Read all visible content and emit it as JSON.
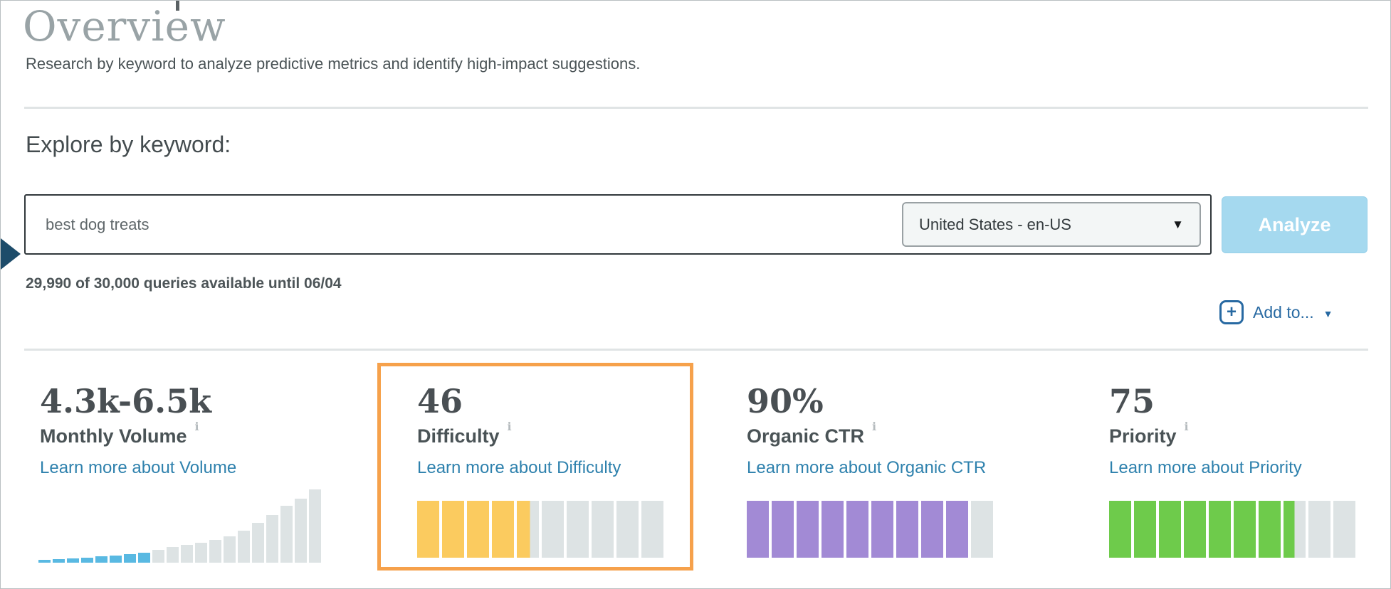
{
  "page": {
    "title": "Overview",
    "subtitle": "Research by keyword to analyze predictive metrics and identify high-impact suggestions."
  },
  "explore": {
    "heading": "Explore by keyword:",
    "keyword_input": {
      "value": "best dog treats"
    },
    "locale_select": {
      "value": "United States - en-US",
      "caret_icon": "▼"
    },
    "analyze_button": "Analyze",
    "quota_text": "29,990 of 30,000 queries available until 06/04",
    "add_to": {
      "label": "Add to...",
      "plus_icon": "+",
      "caret_icon": "▼"
    }
  },
  "metrics": {
    "cards": [
      {
        "id": "volume",
        "value": "4.3k-6.5k",
        "label": "Monthly Volume",
        "info_icon": "i",
        "link": "Learn more about Volume",
        "histogram": {
          "heights": [
            4,
            5,
            6,
            7,
            9,
            10,
            12,
            14,
            18,
            22,
            25,
            28,
            32,
            37,
            45,
            56,
            67,
            80,
            90,
            103
          ],
          "highlight_count": 8,
          "bar_color": "#59b9e2",
          "track_color": "#dde3e4"
        }
      },
      {
        "id": "difficulty",
        "value": "46",
        "label": "Difficulty",
        "info_icon": "i",
        "link": "Learn more about Difficulty",
        "highlighted": true,
        "gauge": {
          "score": 46,
          "segments": 10,
          "color": "#fbcb5f",
          "track_color": "#dde3e4"
        }
      },
      {
        "id": "organic-ctr",
        "value": "90%",
        "label": "Organic CTR",
        "info_icon": "i",
        "link": "Learn more about Organic CTR",
        "gauge": {
          "score": 90,
          "segments": 10,
          "color": "#a28ad5",
          "track_color": "#dde3e4"
        }
      },
      {
        "id": "priority",
        "value": "75",
        "label": "Priority",
        "info_icon": "i",
        "link": "Learn more about Priority",
        "gauge": {
          "score": 75,
          "segments": 10,
          "color": "#6ecb4b",
          "track_color": "#dde3e4"
        }
      }
    ]
  },
  "colors": {
    "highlight_border": "#f6a14b",
    "link_blue": "#2e81ad",
    "add_to_blue": "#2769a2",
    "analyze_bg": "#a5d9ef",
    "pointer_navy": "#1d4c6a"
  }
}
